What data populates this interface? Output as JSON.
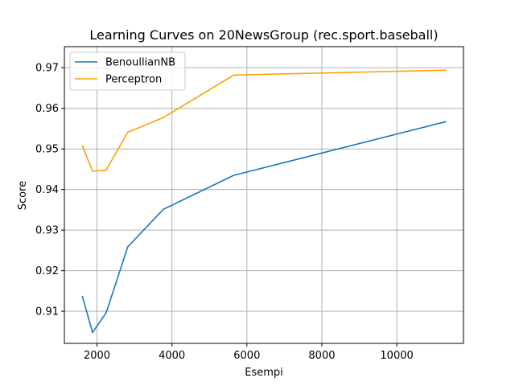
{
  "chart_data": {
    "type": "line",
    "title": "Learning Curves on 20NewsGroup (rec.sport.baseball)",
    "xlabel": "Esempi",
    "ylabel": "Score",
    "xlim": [
      1130,
      11780
    ],
    "ylim": [
      0.9021,
      0.9752
    ],
    "xticks": [
      2000,
      4000,
      6000,
      8000,
      10000
    ],
    "xtick_labels": [
      "2000",
      "4000",
      "6000",
      "8000",
      "10000"
    ],
    "yticks": [
      0.91,
      0.92,
      0.93,
      0.94,
      0.95,
      0.96,
      0.97
    ],
    "ytick_labels": [
      "0.91",
      "0.92",
      "0.93",
      "0.94",
      "0.95",
      "0.96",
      "0.97"
    ],
    "grid": true,
    "legend_position": "upper-left",
    "x": [
      1613,
      1881,
      2244,
      2822,
      3767,
      5651,
      11302
    ],
    "series": [
      {
        "name": "BenoullianNB",
        "color": "#1f77b4",
        "values": [
          0.9136,
          0.9048,
          0.9096,
          0.9259,
          0.9351,
          0.9435,
          0.9567
        ]
      },
      {
        "name": "Perceptron",
        "color": "#ff9f00",
        "values": [
          0.9507,
          0.9445,
          0.9448,
          0.9541,
          0.9577,
          0.9682,
          0.9694
        ]
      }
    ]
  }
}
